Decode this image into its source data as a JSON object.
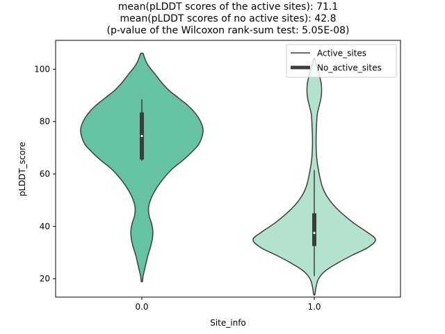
{
  "chart_data": {
    "type": "violin",
    "title_lines": [
      "mean(pLDDT scores of the active sites): 71.1",
      "mean(pLDDT scores of no active sites): 42.8",
      "(p-value of the Wilcoxon rank-sum test: 5.05E-08)"
    ],
    "xlabel": "Site_info",
    "ylabel": "pLDDT_score",
    "categories": [
      "0.0",
      "1.0"
    ],
    "ylim": [
      13,
      111
    ],
    "yticks": [
      20,
      40,
      60,
      80,
      100
    ],
    "legend": {
      "placement": "top-right",
      "entries": [
        "Active_sites",
        "No_active_sites"
      ]
    },
    "series": [
      {
        "name": "0.0",
        "color": "#66c2a5",
        "min": 19,
        "max": 106,
        "box": {
          "q1": 65.5,
          "median": 74.5,
          "q3": 83.5
        },
        "whisker": [
          65,
          88.5
        ],
        "density_profile": [
          [
            106,
            0.02
          ],
          [
            104,
            0.05
          ],
          [
            102,
            0.09
          ],
          [
            100,
            0.15
          ],
          [
            98,
            0.22
          ],
          [
            95,
            0.32
          ],
          [
            92,
            0.44
          ],
          [
            89,
            0.6
          ],
          [
            86,
            0.76
          ],
          [
            83,
            0.88
          ],
          [
            80,
            0.96
          ],
          [
            77,
            1.0
          ],
          [
            74,
            0.98
          ],
          [
            71,
            0.92
          ],
          [
            68,
            0.8
          ],
          [
            65,
            0.66
          ],
          [
            62,
            0.5
          ],
          [
            59,
            0.38
          ],
          [
            56,
            0.28
          ],
          [
            53,
            0.2
          ],
          [
            50,
            0.14
          ],
          [
            47,
            0.11
          ],
          [
            44,
            0.12
          ],
          [
            41,
            0.16
          ],
          [
            38,
            0.18
          ],
          [
            35,
            0.17
          ],
          [
            32,
            0.14
          ],
          [
            29,
            0.1
          ],
          [
            26,
            0.07
          ],
          [
            23,
            0.04
          ],
          [
            21,
            0.02
          ],
          [
            19,
            0.01
          ]
        ]
      },
      {
        "name": "1.0",
        "color": "#b3e2cd",
        "min": 14,
        "max": 104,
        "box": {
          "q1": 32.5,
          "median": 37.5,
          "q3": 45
        },
        "whisker": [
          21,
          61.5
        ],
        "density_profile": [
          [
            104,
            0.01
          ],
          [
            102,
            0.03
          ],
          [
            100,
            0.06
          ],
          [
            98,
            0.08
          ],
          [
            95,
            0.11
          ],
          [
            92,
            0.12
          ],
          [
            89,
            0.11
          ],
          [
            86,
            0.08
          ],
          [
            83,
            0.05
          ],
          [
            80,
            0.04
          ],
          [
            77,
            0.035
          ],
          [
            74,
            0.03
          ],
          [
            71,
            0.03
          ],
          [
            68,
            0.035
          ],
          [
            65,
            0.045
          ],
          [
            62,
            0.065
          ],
          [
            59,
            0.09
          ],
          [
            56,
            0.12
          ],
          [
            53,
            0.17
          ],
          [
            50,
            0.25
          ],
          [
            47,
            0.36
          ],
          [
            44,
            0.5
          ],
          [
            41,
            0.66
          ],
          [
            38,
            0.85
          ],
          [
            35,
            1.0
          ],
          [
            32,
            0.88
          ],
          [
            29,
            0.62
          ],
          [
            26,
            0.38
          ],
          [
            23,
            0.18
          ],
          [
            20,
            0.07
          ],
          [
            17,
            0.03
          ],
          [
            14,
            0.01
          ]
        ]
      }
    ]
  }
}
